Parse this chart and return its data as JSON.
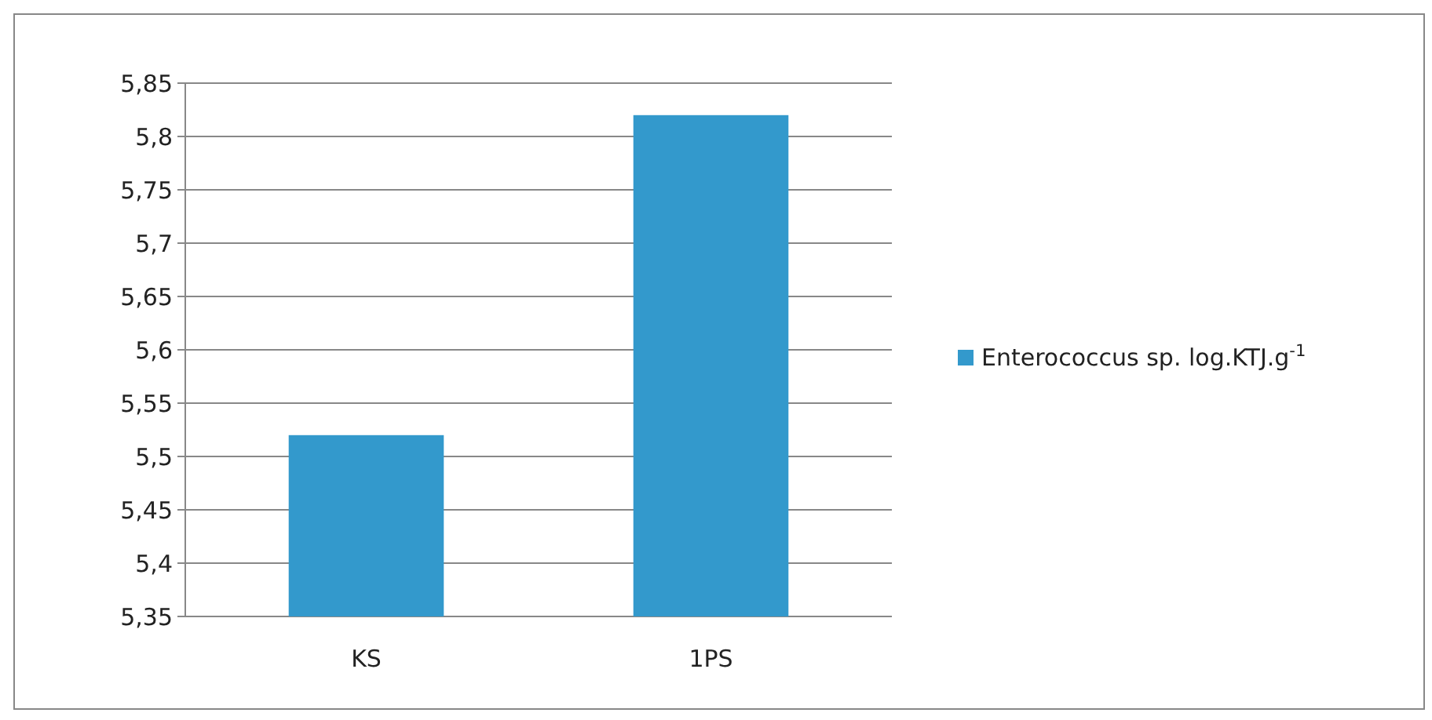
{
  "chart_data": {
    "type": "bar",
    "categories": [
      "KS",
      "1PS"
    ],
    "series": [
      {
        "name": "Enterococcus sp. log.KTJ.g$^{-1}$",
        "color": "#3399cc",
        "values": [
          5.52,
          5.82
        ]
      }
    ],
    "ylim": [
      5.35,
      5.85
    ],
    "yticks": [
      {
        "value": 5.35,
        "label": "5,35"
      },
      {
        "value": 5.4,
        "label": "5,4"
      },
      {
        "value": 5.45,
        "label": "5,45"
      },
      {
        "value": 5.5,
        "label": "5,5"
      },
      {
        "value": 5.55,
        "label": "5,55"
      },
      {
        "value": 5.6,
        "label": "5,6"
      },
      {
        "value": 5.65,
        "label": "5,65"
      },
      {
        "value": 5.7,
        "label": "5,7"
      },
      {
        "value": 5.75,
        "label": "5,75"
      },
      {
        "value": 5.8,
        "label": "5,8"
      },
      {
        "value": 5.85,
        "label": "5,85"
      }
    ],
    "grid": "y",
    "legend": "right"
  }
}
